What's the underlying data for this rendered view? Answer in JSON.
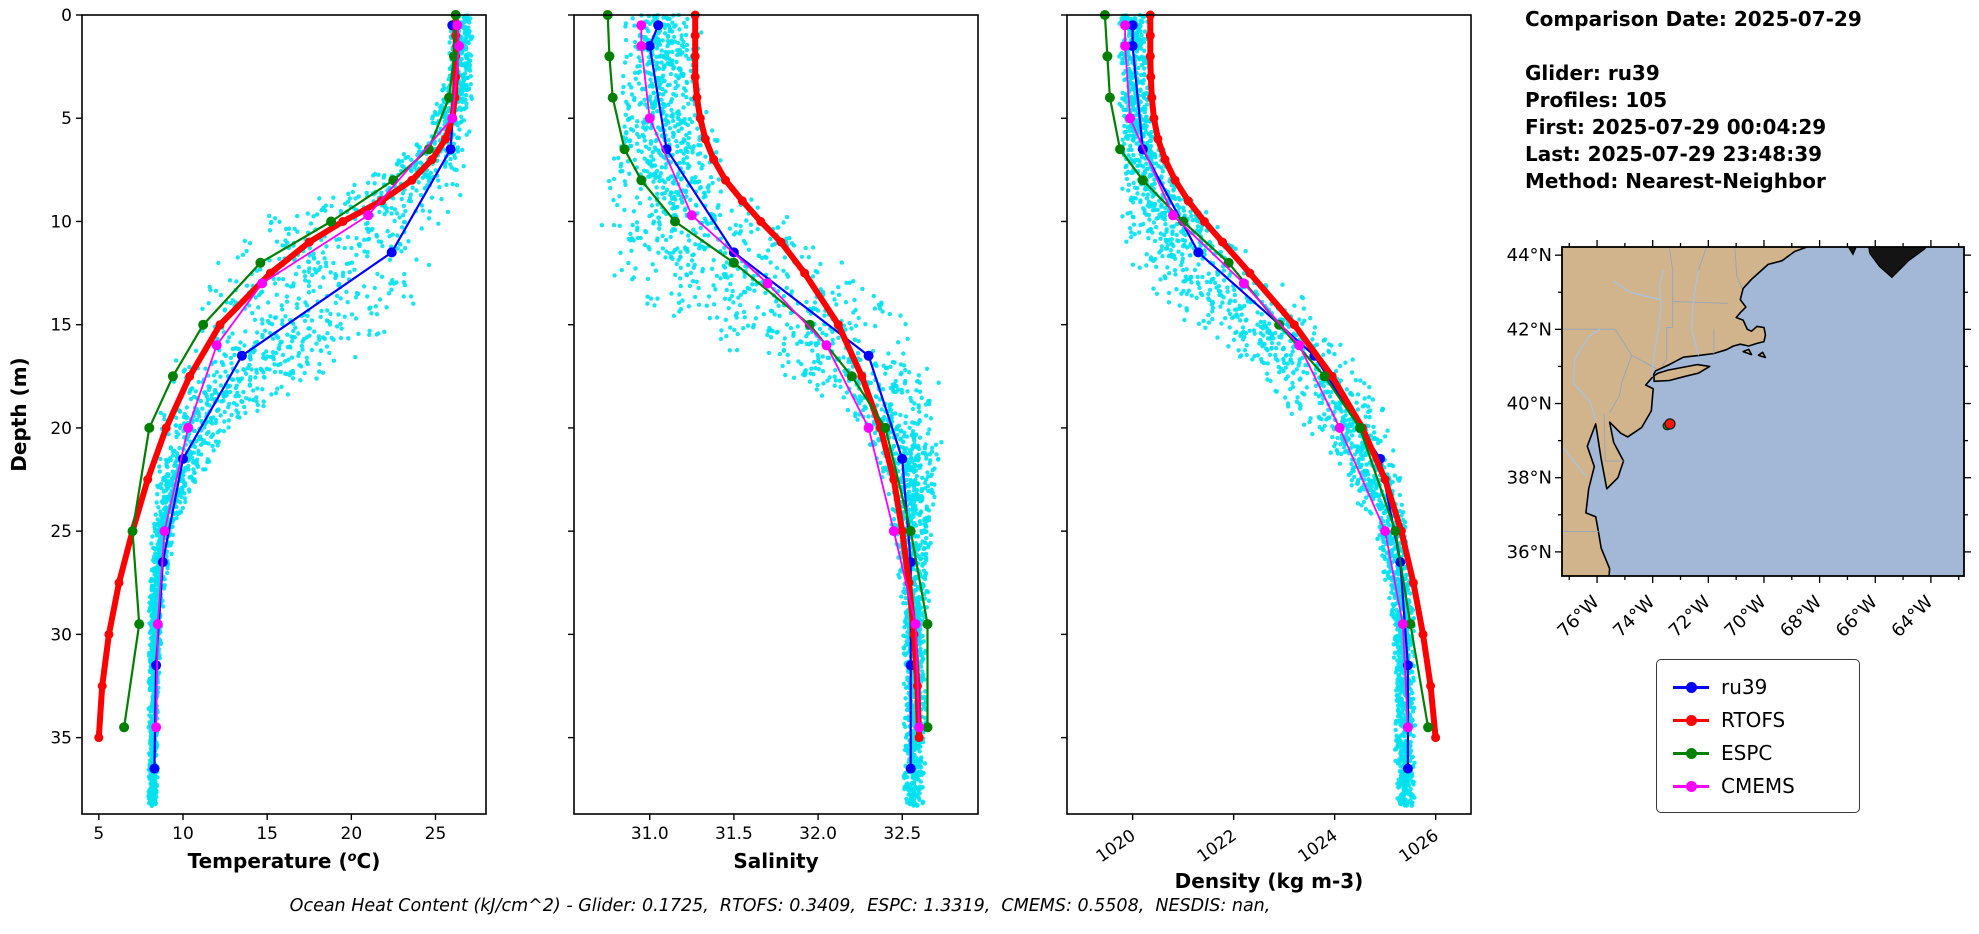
{
  "info_panel": {
    "comparison_date": "Comparison Date: 2025-07-29",
    "glider": "Glider: ru39",
    "profiles": "Profiles: 105",
    "first": "First: 2025-07-29 00:04:29",
    "last": "Last: 2025-07-29 23:48:39",
    "method": "Method: Nearest-Neighbor"
  },
  "footer": {
    "caption": "Ocean Heat Content (kJ/cm^2) - Glider: 0.1725,  RTOFS: 0.3409,  ESPC: 1.3319,  CMEMS: 0.5508,  NESDIS: nan,"
  },
  "legend": {
    "items": [
      {
        "label": "ru39",
        "color": "#0000ff"
      },
      {
        "label": "RTOFS",
        "color": "#ff0000"
      },
      {
        "label": "ESPC",
        "color": "#008000"
      },
      {
        "label": "CMEMS",
        "color": "#ff00ff"
      }
    ]
  },
  "colors": {
    "scatter_cyan": "#00e1ef",
    "ru39_blue": "#0000ff",
    "rtofs_red": "#ff0000",
    "espc_green": "#008000",
    "cmems_magenta": "#ff00ff"
  },
  "chart_data": [
    {
      "type": "scatter",
      "title": "",
      "xlabel": "Temperature (ᵒC)",
      "ylabel": "Depth (m)",
      "xlim": [
        4.0,
        28.0
      ],
      "ylim": [
        0,
        38.7
      ],
      "xticks": [
        5,
        10,
        15,
        20,
        25
      ],
      "yticks": [
        0,
        5,
        10,
        15,
        20,
        25,
        30,
        35
      ],
      "xtick_rotation": 0,
      "grid": false,
      "scatter": {
        "name": "glider-raw-points",
        "color": "#00e1ef",
        "n": 2300,
        "envelope": [
          [
            0,
            25.8,
            27.3
          ],
          [
            3,
            25.6,
            27.3
          ],
          [
            6,
            24.0,
            27.2
          ],
          [
            8,
            20.0,
            27.0
          ],
          [
            10,
            13.5,
            26.8
          ],
          [
            12,
            11.5,
            26.0
          ],
          [
            14,
            10.2,
            24.5
          ],
          [
            16,
            9.4,
            21.5
          ],
          [
            18,
            8.8,
            17.5
          ],
          [
            20,
            8.5,
            13.5
          ],
          [
            22,
            8.3,
            11.5
          ],
          [
            25,
            8.1,
            9.6
          ],
          [
            28,
            8.0,
            8.9
          ],
          [
            32,
            7.9,
            8.6
          ],
          [
            38.5,
            7.9,
            8.5
          ]
        ]
      },
      "series": [
        {
          "name": "ru39",
          "color": "#0000ff",
          "lw": 2.2,
          "marker": 5,
          "depths": [
            0.5,
            1.5,
            6.5,
            11.5,
            16.5,
            21.5,
            26.5,
            31.5,
            36.5
          ],
          "values": [
            26.0,
            26.3,
            25.9,
            22.4,
            13.5,
            10.0,
            8.8,
            8.4,
            8.3
          ]
        },
        {
          "name": "RTOFS",
          "color": "#ff0000",
          "lw": 6,
          "marker": 4.5,
          "depths": [
            0,
            1,
            2,
            3,
            4,
            5,
            6,
            7,
            8,
            9,
            10,
            11,
            12.5,
            15,
            17.5,
            20,
            22.5,
            25,
            27.5,
            30,
            32.5,
            35
          ],
          "values": [
            26.2,
            26.2,
            26.2,
            26.2,
            26.15,
            26.0,
            25.6,
            24.8,
            23.6,
            21.8,
            19.5,
            17.5,
            15.2,
            12.2,
            10.4,
            9.0,
            7.9,
            7.0,
            6.2,
            5.6,
            5.2,
            5.0
          ]
        },
        {
          "name": "ESPC",
          "color": "#008000",
          "lw": 2.2,
          "marker": 5,
          "depths": [
            0,
            2,
            4,
            6.5,
            8,
            10,
            12,
            15,
            17.5,
            20,
            25,
            29.5,
            34.5
          ],
          "values": [
            26.2,
            26.1,
            25.8,
            24.6,
            22.5,
            18.8,
            14.6,
            11.2,
            9.4,
            8.0,
            7.0,
            7.4,
            6.5
          ]
        },
        {
          "name": "CMEMS",
          "color": "#ff00ff",
          "lw": 1.8,
          "marker": 5,
          "depths": [
            0.5,
            1.5,
            5,
            9.7,
            13,
            16,
            20,
            25,
            29.5,
            34.5
          ],
          "values": [
            26.3,
            26.4,
            26.0,
            21.0,
            14.7,
            12.0,
            10.3,
            8.9,
            8.5,
            8.4
          ]
        }
      ]
    },
    {
      "type": "scatter",
      "title": "",
      "xlabel": "Salinity",
      "ylabel": "Depth (m)",
      "xlim": [
        30.55,
        32.95
      ],
      "ylim": [
        0,
        38.7
      ],
      "xticks": [
        31.0,
        31.5,
        32.0,
        32.5
      ],
      "xtick_labels": [
        "31.0",
        "31.5",
        "32.0",
        "32.5"
      ],
      "yticks": [
        0,
        5,
        10,
        15,
        20,
        25,
        30,
        35
      ],
      "xtick_rotation": 0,
      "grid": false,
      "scatter": {
        "name": "glider-raw-points",
        "color": "#00e1ef",
        "n": 2300,
        "envelope": [
          [
            0,
            30.85,
            31.3
          ],
          [
            4,
            30.8,
            31.35
          ],
          [
            8,
            30.7,
            31.5
          ],
          [
            10,
            30.65,
            31.9
          ],
          [
            12,
            30.7,
            32.2
          ],
          [
            14,
            30.9,
            32.55
          ],
          [
            16,
            31.4,
            32.7
          ],
          [
            18,
            31.9,
            32.75
          ],
          [
            20,
            32.2,
            32.75
          ],
          [
            23,
            32.4,
            32.72
          ],
          [
            26,
            32.45,
            32.68
          ],
          [
            30,
            32.5,
            32.65
          ],
          [
            38.5,
            32.5,
            32.64
          ]
        ]
      },
      "series": [
        {
          "name": "ru39",
          "color": "#0000ff",
          "lw": 2.2,
          "marker": 5,
          "depths": [
            0.5,
            1.5,
            6.5,
            11.5,
            16.5,
            21.5,
            26.5,
            31.5,
            36.5
          ],
          "values": [
            31.05,
            31.0,
            31.1,
            31.5,
            32.3,
            32.5,
            32.55,
            32.55,
            32.55
          ]
        },
        {
          "name": "RTOFS",
          "color": "#ff0000",
          "lw": 6,
          "marker": 4.5,
          "depths": [
            0,
            1,
            2,
            3,
            4,
            5,
            6,
            7,
            8,
            9,
            10,
            11,
            12.5,
            15,
            17.5,
            20,
            22.5,
            25,
            27.5,
            30,
            32.5,
            35
          ],
          "values": [
            31.27,
            31.27,
            31.27,
            31.27,
            31.28,
            31.3,
            31.33,
            31.38,
            31.45,
            31.55,
            31.66,
            31.78,
            31.92,
            32.12,
            32.26,
            32.37,
            32.45,
            32.5,
            32.54,
            32.57,
            32.59,
            32.6
          ]
        },
        {
          "name": "ESPC",
          "color": "#008000",
          "lw": 2.2,
          "marker": 5,
          "depths": [
            0,
            2,
            4,
            6.5,
            8,
            10,
            12,
            15,
            17.5,
            20,
            25,
            29.5,
            34.5
          ],
          "values": [
            30.75,
            30.76,
            30.78,
            30.85,
            30.95,
            31.15,
            31.5,
            31.95,
            32.2,
            32.4,
            32.55,
            32.65,
            32.65
          ]
        },
        {
          "name": "CMEMS",
          "color": "#ff00ff",
          "lw": 1.8,
          "marker": 5,
          "depths": [
            0.5,
            1.5,
            5,
            9.7,
            13,
            16,
            20,
            25,
            29.5,
            34.5
          ],
          "values": [
            30.95,
            30.95,
            31.0,
            31.25,
            31.7,
            32.05,
            32.3,
            32.45,
            32.58,
            32.6
          ]
        }
      ]
    },
    {
      "type": "scatter",
      "title": "",
      "xlabel": "Density (kg m-3)",
      "ylabel": "Depth (m)",
      "xlim": [
        1018.7,
        1026.7
      ],
      "ylim": [
        0,
        38.7
      ],
      "xticks": [
        1020,
        1022,
        1024,
        1026
      ],
      "xtick_labels": [
        "1020",
        "1022",
        "1024",
        "1026"
      ],
      "yticks": [
        0,
        5,
        10,
        15,
        20,
        25,
        30,
        35
      ],
      "xtick_rotation": -35,
      "grid": false,
      "scatter": {
        "name": "glider-raw-points",
        "color": "#00e1ef",
        "n": 2300,
        "envelope": [
          [
            0,
            1019.7,
            1020.35
          ],
          [
            5,
            1019.7,
            1020.4
          ],
          [
            8,
            1019.7,
            1020.9
          ],
          [
            10,
            1019.8,
            1021.8
          ],
          [
            12,
            1019.9,
            1022.6
          ],
          [
            14,
            1020.4,
            1023.6
          ],
          [
            16,
            1021.6,
            1024.3
          ],
          [
            18,
            1022.6,
            1024.9
          ],
          [
            20,
            1023.4,
            1025.15
          ],
          [
            23,
            1024.3,
            1025.4
          ],
          [
            26,
            1024.9,
            1025.5
          ],
          [
            30,
            1025.15,
            1025.6
          ],
          [
            38.5,
            1025.2,
            1025.6
          ]
        ]
      },
      "series": [
        {
          "name": "ru39",
          "color": "#0000ff",
          "lw": 2.2,
          "marker": 5,
          "depths": [
            0.5,
            1.5,
            6.5,
            11.5,
            16.5,
            21.5,
            26.5,
            31.5,
            36.5
          ],
          "values": [
            1020.0,
            1020.0,
            1020.2,
            1021.3,
            1023.6,
            1024.9,
            1025.3,
            1025.45,
            1025.45
          ]
        },
        {
          "name": "RTOFS",
          "color": "#ff0000",
          "lw": 6,
          "marker": 4.5,
          "depths": [
            0,
            1,
            2,
            3,
            4,
            5,
            6,
            7,
            8,
            9,
            10,
            11,
            12.5,
            15,
            17.5,
            20,
            22.5,
            25,
            27.5,
            30,
            32.5,
            35
          ],
          "values": [
            1020.35,
            1020.35,
            1020.35,
            1020.36,
            1020.38,
            1020.42,
            1020.5,
            1020.64,
            1020.84,
            1021.1,
            1021.42,
            1021.78,
            1022.32,
            1023.2,
            1023.95,
            1024.55,
            1025.0,
            1025.32,
            1025.56,
            1025.75,
            1025.9,
            1026.0
          ]
        },
        {
          "name": "ESPC",
          "color": "#008000",
          "lw": 2.2,
          "marker": 5,
          "depths": [
            0,
            2,
            4,
            6.5,
            8,
            10,
            12,
            15,
            17.5,
            20,
            25,
            29.5,
            34.5
          ],
          "values": [
            1019.45,
            1019.5,
            1019.55,
            1019.75,
            1020.2,
            1021.0,
            1021.9,
            1022.9,
            1023.8,
            1024.5,
            1025.2,
            1025.5,
            1025.85
          ]
        },
        {
          "name": "CMEMS",
          "color": "#ff00ff",
          "lw": 1.8,
          "marker": 5,
          "depths": [
            0.5,
            1.5,
            5,
            9.7,
            13,
            16,
            20,
            25,
            29.5,
            34.5
          ],
          "values": [
            1019.85,
            1019.85,
            1019.95,
            1020.8,
            1022.2,
            1023.3,
            1024.1,
            1025.0,
            1025.35,
            1025.45
          ]
        }
      ]
    }
  ],
  "map": {
    "lon_range": [
      -77.26,
      -62.81
    ],
    "lat_range": [
      35.35,
      44.22
    ],
    "lon_ticks": [
      -76,
      -74,
      -72,
      -70,
      -68,
      -66,
      -64
    ],
    "lon_tick_labels": [
      "76°W",
      "74°W",
      "72°W",
      "70°W",
      "68°W",
      "66°W",
      "64°W"
    ],
    "lat_ticks": [
      36,
      38,
      40,
      42,
      44
    ],
    "lat_tick_labels": [
      "36°N",
      "38°N",
      "40°N",
      "42°N",
      "44°N"
    ],
    "land_color": "#d2b48c",
    "ocean_color": "#a2b8d6",
    "dark_land_color": "#141414",
    "river_color": "#a9c2e2",
    "border_color": "#9aa6b4",
    "markers": [
      {
        "lon": -73.48,
        "lat": 39.4,
        "color": "#2e8b2e",
        "r": 4,
        "edge": "#143814"
      },
      {
        "lon": -73.38,
        "lat": 39.45,
        "color": "#ff1500",
        "r": 5,
        "edge": "#222222"
      }
    ]
  }
}
